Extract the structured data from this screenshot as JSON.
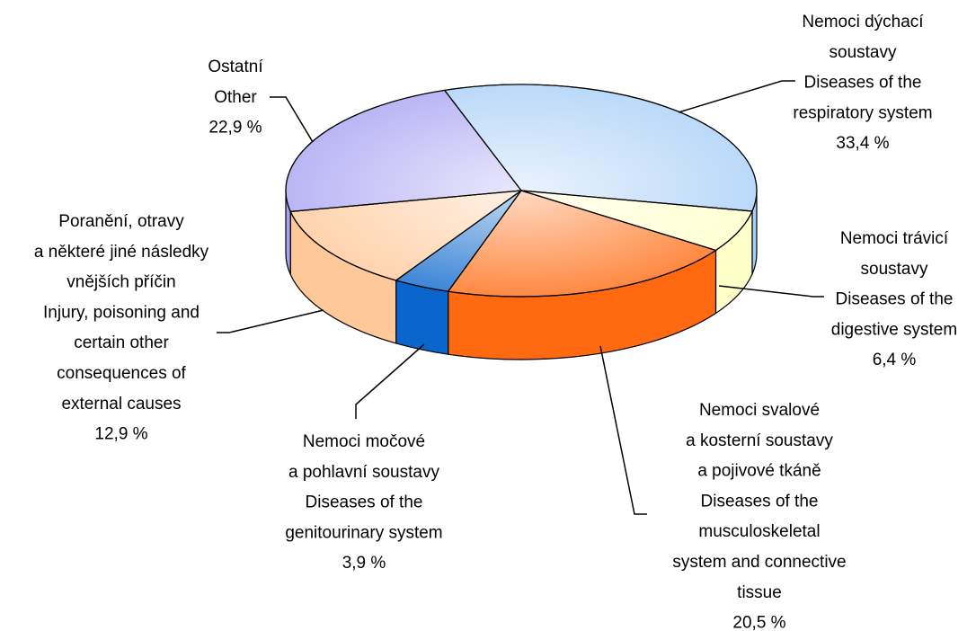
{
  "chart_data": {
    "type": "pie",
    "categories": [
      [
        "Nemoci dýchací",
        "soustavy",
        "Diseases of the",
        "respiratory system"
      ],
      [
        "Nemoci trávicí",
        "soustavy",
        "Diseases of the",
        "digestive system"
      ],
      [
        "Nemoci svalové",
        "a kosterní soustavy",
        "a pojivové tkáně",
        "Diseases of the",
        "musculoskeletal",
        "system and connective",
        "tissue"
      ],
      [
        "Nemoci  močové",
        "a pohlavní soustavy",
        "Diseases of the",
        "genitourinary system"
      ],
      [
        "Poranění, otravy",
        "a některé jiné následky",
        "vnějších příčin",
        "Injury, poisoning and",
        "certain other",
        "consequences of",
        "external causes"
      ],
      [
        "Ostatní",
        "Other"
      ]
    ],
    "values": [
      33.4,
      6.4,
      20.5,
      3.9,
      12.9,
      22.9
    ],
    "value_labels": [
      "33,4 %",
      "6,4 %",
      "20,5 %",
      "3,9 %",
      "12,9 %",
      "22,9 %"
    ],
    "colors": [
      "#a8cff7",
      "#ffffc8",
      "#ff6a10",
      "#0a66cc",
      "#ffc898",
      "#a8a2f2"
    ]
  }
}
